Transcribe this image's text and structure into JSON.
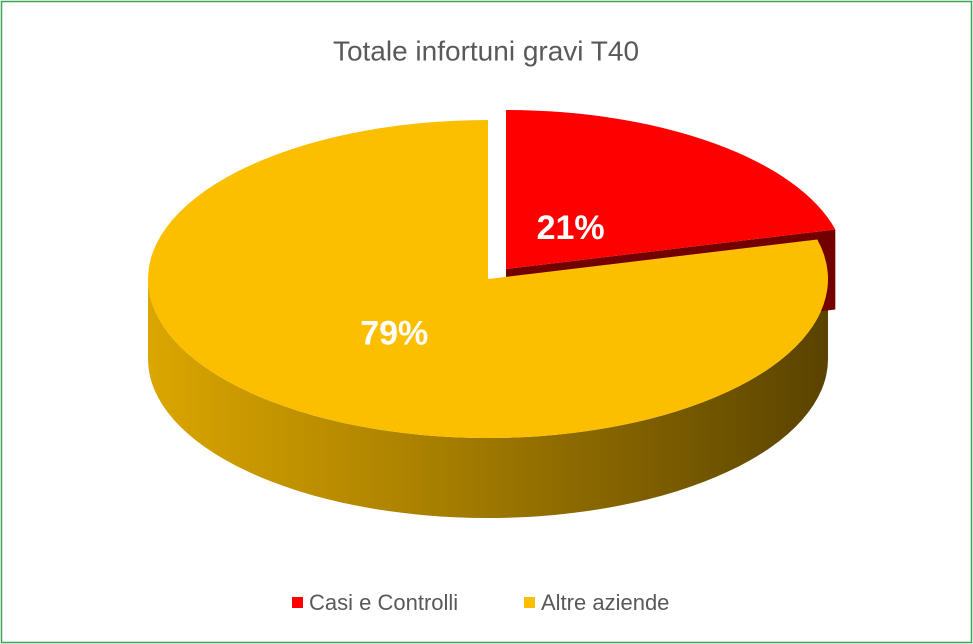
{
  "chart_data": {
    "type": "pie",
    "title": "Totale infortuni gravi T40",
    "categories": [
      "Casi e Controlli",
      "Altre aziende"
    ],
    "values": [
      21,
      79
    ],
    "value_labels": [
      "21%",
      "79%"
    ],
    "colors": [
      "#ff0000",
      "#fbbf00"
    ]
  }
}
